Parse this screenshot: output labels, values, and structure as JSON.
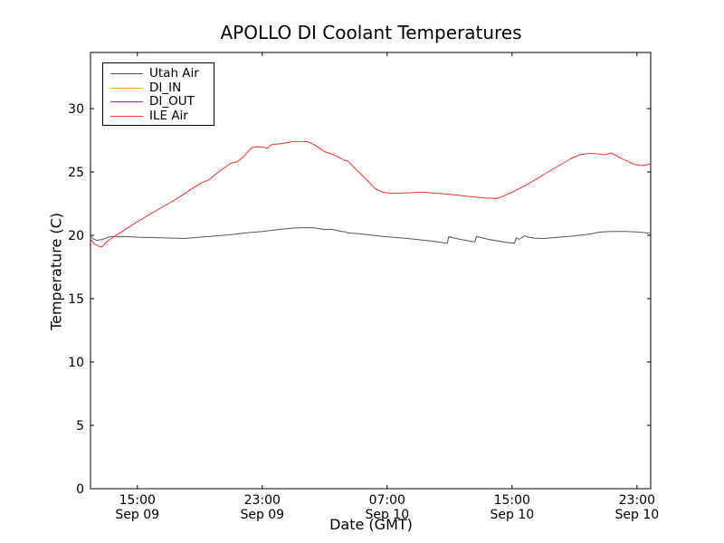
{
  "chart_data": {
    "type": "line",
    "title": "APOLLO DI Coolant Temperatures",
    "xlabel": "Date (GMT)",
    "ylabel": "Temperature (C)",
    "background_color": "#ffffff",
    "axis_color": "#000000",
    "grid": false,
    "legend_position": "upper left",
    "x_axis": {
      "note": "t = hours since Sep 09 12:00 GMT",
      "range": [
        0,
        35.88
      ],
      "ticks": [
        {
          "t": 3,
          "time": "15:00",
          "date": "Sep 09"
        },
        {
          "t": 11,
          "time": "23:00",
          "date": "Sep 09"
        },
        {
          "t": 19,
          "time": "07:00",
          "date": "Sep 10"
        },
        {
          "t": 27,
          "time": "15:00",
          "date": "Sep 10"
        },
        {
          "t": 35,
          "time": "23:00",
          "date": "Sep 10"
        }
      ]
    },
    "y_axis": {
      "range": [
        0,
        34.4
      ],
      "ticks": [
        0,
        5,
        10,
        15,
        20,
        25,
        30
      ]
    },
    "series": [
      {
        "name": "Utah Air",
        "color": "#555555",
        "points": [
          [
            0,
            19.95
          ],
          [
            0.2,
            19.7
          ],
          [
            0.4,
            19.6
          ],
          [
            0.8,
            19.7
          ],
          [
            1.3,
            19.9
          ],
          [
            2.2,
            19.9
          ],
          [
            3.0,
            19.85
          ],
          [
            4.5,
            19.8
          ],
          [
            6.0,
            19.75
          ],
          [
            7.0,
            19.85
          ],
          [
            8.0,
            19.95
          ],
          [
            9.0,
            20.05
          ],
          [
            10.0,
            20.2
          ],
          [
            11.0,
            20.3
          ],
          [
            12.0,
            20.45
          ],
          [
            12.8,
            20.55
          ],
          [
            13.5,
            20.6
          ],
          [
            14.2,
            20.6
          ],
          [
            14.8,
            20.5
          ],
          [
            15.0,
            20.45
          ],
          [
            15.4,
            20.48
          ],
          [
            16.1,
            20.3
          ],
          [
            16.35,
            20.28
          ],
          [
            16.45,
            20.2
          ],
          [
            17.4,
            20.1
          ],
          [
            18.8,
            19.9
          ],
          [
            20.3,
            19.75
          ],
          [
            21.8,
            19.55
          ],
          [
            22.85,
            19.38
          ],
          [
            22.95,
            19.9
          ],
          [
            23.5,
            19.72
          ],
          [
            24.5,
            19.5
          ],
          [
            24.62,
            19.48
          ],
          [
            24.72,
            19.9
          ],
          [
            25.5,
            19.68
          ],
          [
            26.6,
            19.45
          ],
          [
            27.15,
            19.38
          ],
          [
            27.28,
            19.8
          ],
          [
            27.45,
            19.68
          ],
          [
            27.8,
            19.95
          ],
          [
            28.1,
            19.85
          ],
          [
            28.4,
            19.78
          ],
          [
            29.0,
            19.75
          ],
          [
            30.0,
            19.85
          ],
          [
            31.0,
            19.95
          ],
          [
            32.0,
            20.1
          ],
          [
            32.6,
            20.25
          ],
          [
            33.3,
            20.3
          ],
          [
            34.3,
            20.3
          ],
          [
            35.2,
            20.25
          ],
          [
            35.88,
            20.15
          ]
        ]
      },
      {
        "name": "DI_IN",
        "color": "#ffa733",
        "points": []
      },
      {
        "name": "DI_OUT",
        "color": "#8f2f8f",
        "points": []
      },
      {
        "name": "ILE Air",
        "color": "#e73434",
        "points": [
          [
            0,
            19.7
          ],
          [
            0.25,
            19.3
          ],
          [
            0.6,
            19.1
          ],
          [
            0.75,
            19.1
          ],
          [
            1.0,
            19.45
          ],
          [
            1.5,
            19.9
          ],
          [
            2.1,
            20.35
          ],
          [
            2.9,
            21.0
          ],
          [
            4.0,
            21.8
          ],
          [
            5.0,
            22.5
          ],
          [
            5.8,
            23.1
          ],
          [
            6.4,
            23.6
          ],
          [
            7.2,
            24.2
          ],
          [
            7.55,
            24.35
          ],
          [
            8.1,
            24.9
          ],
          [
            9.0,
            25.7
          ],
          [
            9.4,
            25.8
          ],
          [
            9.8,
            26.2
          ],
          [
            10.3,
            26.9
          ],
          [
            10.7,
            27.0
          ],
          [
            11.1,
            26.95
          ],
          [
            11.3,
            26.85
          ],
          [
            11.6,
            27.15
          ],
          [
            12.3,
            27.25
          ],
          [
            13.0,
            27.4
          ],
          [
            13.9,
            27.4
          ],
          [
            14.4,
            27.1
          ],
          [
            15.0,
            26.6
          ],
          [
            15.5,
            26.4
          ],
          [
            16.0,
            26.1
          ],
          [
            16.3,
            25.9
          ],
          [
            16.5,
            25.85
          ],
          [
            17.0,
            25.2
          ],
          [
            17.6,
            24.5
          ],
          [
            18.2,
            23.7
          ],
          [
            18.7,
            23.4
          ],
          [
            19.3,
            23.3
          ],
          [
            20.3,
            23.35
          ],
          [
            21.2,
            23.4
          ],
          [
            22.3,
            23.3
          ],
          [
            23.3,
            23.2
          ],
          [
            24.3,
            23.05
          ],
          [
            25.3,
            22.95
          ],
          [
            26.0,
            22.9
          ],
          [
            26.35,
            23.05
          ],
          [
            27.0,
            23.4
          ],
          [
            27.8,
            23.9
          ],
          [
            28.5,
            24.4
          ],
          [
            29.3,
            25.0
          ],
          [
            30.0,
            25.5
          ],
          [
            30.7,
            26.0
          ],
          [
            31.3,
            26.35
          ],
          [
            31.8,
            26.45
          ],
          [
            32.4,
            26.45
          ],
          [
            32.9,
            26.35
          ],
          [
            33.35,
            26.5
          ],
          [
            33.8,
            26.2
          ],
          [
            34.2,
            25.95
          ],
          [
            34.8,
            25.6
          ],
          [
            35.4,
            25.5
          ],
          [
            35.88,
            25.65
          ]
        ]
      }
    ]
  }
}
